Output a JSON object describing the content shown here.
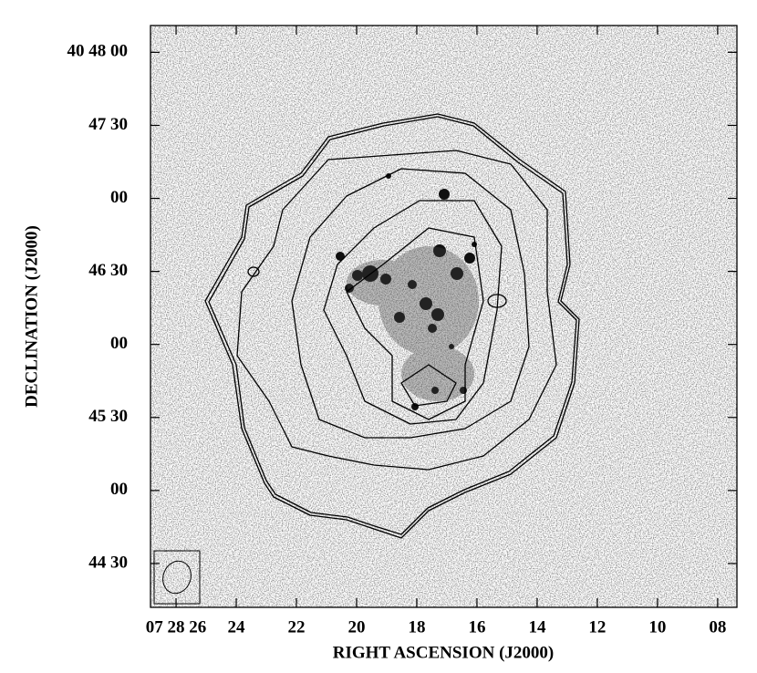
{
  "chart_data": {
    "type": "image",
    "xlabel": "RIGHT ASCENSION (J2000)",
    "ylabel": "DECLINATION (J2000)",
    "xlim": [
      26.85,
      7.36
    ],
    "xticks": [
      {
        "value": 26,
        "label": "07 28 26"
      },
      24,
      22,
      20,
      18,
      16,
      14,
      12,
      10,
      {
        "value": 8,
        "label": "08"
      }
    ],
    "ylim": [
      2652,
      2891
    ],
    "yticks": [
      {
        "value": 2880,
        "label": "40 48 00"
      },
      {
        "value": 2850,
        "label": "47 30"
      },
      {
        "value": 2820,
        "label": "00"
      },
      {
        "value": 2790,
        "label": "46 30"
      },
      {
        "value": 2760,
        "label": "00"
      },
      {
        "value": 2730,
        "label": "45 30"
      },
      {
        "value": 2700,
        "label": "00"
      },
      {
        "value": 2670,
        "label": "44 30"
      }
    ]
  }
}
